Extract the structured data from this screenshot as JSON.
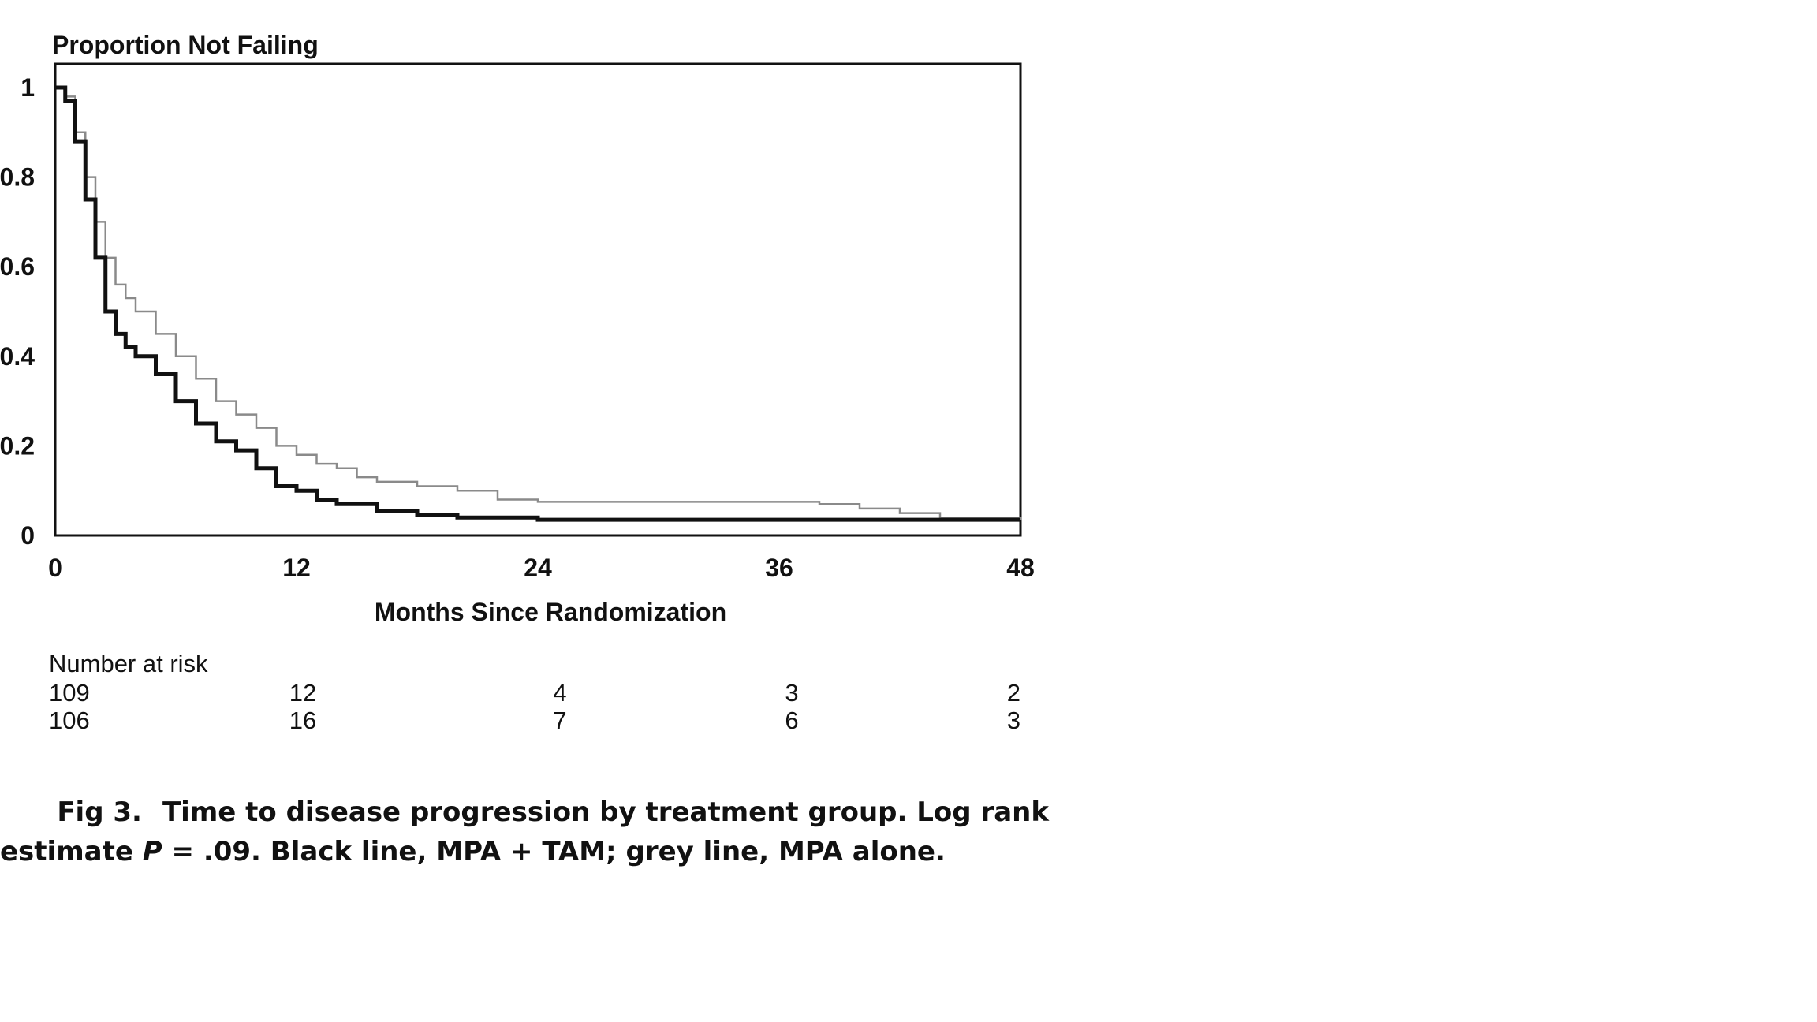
{
  "chart_data": {
    "type": "line",
    "title": "",
    "ylabel": "Proportion Not Failing",
    "xlabel": "Months Since Randomization",
    "xlim": [
      0,
      48
    ],
    "ylim": [
      0,
      1
    ],
    "xticks": [
      "0",
      "12",
      "24",
      "36",
      "48"
    ],
    "yticks": [
      "0",
      "0.2",
      "0.4",
      "0.6",
      "0.8",
      "1"
    ],
    "legend": "none",
    "grid": false,
    "series": [
      {
        "color": "#111111",
        "x": [
          0,
          0.5,
          1,
          1.5,
          2,
          2.5,
          3,
          3.5,
          4,
          5,
          6,
          7,
          8,
          9,
          10,
          11,
          12,
          13,
          14,
          16,
          18,
          20,
          22,
          24,
          30,
          36,
          42,
          48
        ],
        "y": [
          1.0,
          0.97,
          0.88,
          0.75,
          0.62,
          0.5,
          0.45,
          0.42,
          0.4,
          0.36,
          0.3,
          0.25,
          0.21,
          0.19,
          0.15,
          0.11,
          0.1,
          0.08,
          0.07,
          0.055,
          0.045,
          0.04,
          0.04,
          0.035,
          0.035,
          0.035,
          0.035,
          0.035
        ]
      },
      {
        "color": "#8a8a8a",
        "x": [
          0,
          0.5,
          1,
          1.5,
          2,
          2.5,
          3,
          3.5,
          4,
          5,
          6,
          7,
          8,
          9,
          10,
          11,
          12,
          13,
          14,
          15,
          16,
          18,
          20,
          22,
          24,
          30,
          36,
          38,
          40,
          42,
          44,
          48
        ],
        "y": [
          1.0,
          0.98,
          0.9,
          0.8,
          0.7,
          0.62,
          0.56,
          0.53,
          0.5,
          0.45,
          0.4,
          0.35,
          0.3,
          0.27,
          0.24,
          0.2,
          0.18,
          0.16,
          0.15,
          0.13,
          0.12,
          0.11,
          0.1,
          0.08,
          0.075,
          0.075,
          0.075,
          0.07,
          0.06,
          0.05,
          0.04,
          0.035
        ]
      }
    ]
  },
  "risk_table": {
    "title": "Number at risk",
    "rows": [
      [
        "109",
        "12",
        "4",
        "3",
        "2"
      ],
      [
        "106",
        "16",
        "7",
        "6",
        "3"
      ]
    ]
  },
  "caption": {
    "fig_label": "Fig 3.",
    "line1_text": "Time to disease progression by treatment group. Log rank",
    "line2_pre": "estimate ",
    "line2_var": "P",
    "line2_post": " = .09. Black line, MPA + TAM; grey line, MPA alone."
  }
}
